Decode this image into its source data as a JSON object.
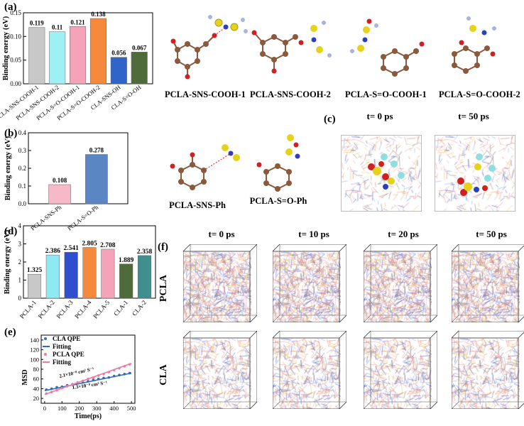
{
  "panel_labels": {
    "a": "(a)",
    "b": "(b)",
    "c": "(c)",
    "d": "(d)",
    "e": "(e)",
    "f": "(f)"
  },
  "molecule_labels": {
    "a": [
      "PCLA-SNS-COOH-1",
      "PCLA-SNS-COOH-2",
      "PCLA-S=O-COOH-1",
      "PCLA-S=O-COOH-2"
    ],
    "b": [
      "PCLA-SNS-Ph",
      "PCLA-S=O-Ph"
    ]
  },
  "panel_c": {
    "times": [
      "t= 0 ps",
      "t= 50 ps"
    ]
  },
  "panel_f": {
    "times": [
      "t= 0 ps",
      "t= 10 ps",
      "t= 20 ps",
      "t= 50 ps"
    ],
    "rows": [
      "PCLA",
      "CLA"
    ]
  },
  "chart_data": [
    {
      "id": "a",
      "type": "bar",
      "title": "",
      "xlabel": "",
      "ylabel": "Binding energy (eV)",
      "ylim": [
        0,
        0.15
      ],
      "yticks": [
        0.0,
        0.05,
        0.1,
        0.15
      ],
      "categories": [
        "PCLA-SNS-COOH-1",
        "PCLA-SNS-COOH-2",
        "PCLA-S=O-COOH-1",
        "PCLA-S=O-COOH-2",
        "CLA-SNS-OH",
        "CLA-S=O-OH"
      ],
      "values": [
        0.119,
        0.11,
        0.121,
        0.138,
        0.056,
        0.067
      ],
      "labels": [
        "0.119",
        "0.11",
        "0.121",
        "0.138",
        "0.056",
        "0.067"
      ],
      "colors": [
        "#c8c8c8",
        "#9ef0f4",
        "#f5a3b8",
        "#f58a3c",
        "#2f65c8",
        "#4f6b3a"
      ]
    },
    {
      "id": "b",
      "type": "bar",
      "title": "",
      "xlabel": "",
      "ylabel": "Binding energy (eV)",
      "ylim": [
        0,
        0.4
      ],
      "yticks": [
        0.0,
        0.1,
        0.2,
        0.3,
        0.4
      ],
      "categories": [
        "PCLA-SNS-Ph",
        "PCLA-S=O-Ph"
      ],
      "values": [
        0.108,
        0.278
      ],
      "labels": [
        "0.108",
        "0.278"
      ],
      "colors": [
        "#f7b8c8",
        "#5b86c4"
      ]
    },
    {
      "id": "d",
      "type": "bar",
      "title": "",
      "xlabel": "",
      "ylabel": "Binding energy (eV)",
      "ylim": [
        0,
        4
      ],
      "yticks": [
        0,
        1,
        2,
        3,
        4
      ],
      "categories": [
        "PCLA-1",
        "PCLA-2",
        "PCLA-3",
        "PCLA-4",
        "PCLA-5",
        "CLA-1",
        "CLA-2"
      ],
      "values": [
        1.325,
        2.386,
        2.541,
        2.805,
        2.708,
        1.889,
        2.358
      ],
      "labels": [
        "1.325",
        "2.386",
        "2.541",
        "2.805",
        "2.708",
        "1.889",
        "2.358"
      ],
      "colors": [
        "#c8c8c8",
        "#8fe9f2",
        "#2f4fd0",
        "#f58a3c",
        "#f5a3b8",
        "#4f6b3a",
        "#3f8f8f"
      ]
    },
    {
      "id": "e",
      "type": "scatter",
      "title": "",
      "xlabel": "Time(ps)",
      "ylabel": "MSD",
      "xlim": [
        -20,
        520
      ],
      "ylim": [
        10,
        150
      ],
      "xticks": [
        0,
        100,
        200,
        300,
        400,
        500
      ],
      "yticks": [
        20,
        30,
        40,
        50,
        60,
        70,
        80,
        90,
        100,
        110,
        120,
        130,
        140
      ],
      "legend": [
        "CLA QPE",
        "Fitting",
        "PCLA QPE",
        "Fitting"
      ],
      "annotations": [
        "2.1×10⁻⁸ cm² S⁻¹",
        "1.3×10⁻⁸ cm² S⁻¹"
      ],
      "series": [
        {
          "name": "CLA QPE",
          "kind": "scatter",
          "color": "#3a6fb0",
          "x": [
            10,
            40,
            70,
            100,
            130,
            160,
            190,
            220,
            250,
            280,
            310,
            340,
            370,
            400,
            430,
            460,
            490
          ],
          "y": [
            38,
            40,
            43,
            44,
            47,
            49,
            51,
            53,
            55,
            58,
            60,
            62,
            63,
            66,
            68,
            70,
            72
          ]
        },
        {
          "name": "Fitting",
          "kind": "line",
          "color": "#2e6bbf",
          "x": [
            0,
            500
          ],
          "y": [
            36,
            72
          ]
        },
        {
          "name": "PCLA QPE",
          "kind": "scatter",
          "color": "#f07aa0",
          "x": [
            10,
            40,
            70,
            100,
            130,
            160,
            190,
            220,
            250,
            280,
            310,
            340,
            370,
            400,
            430,
            460,
            490
          ],
          "y": [
            30,
            33,
            37,
            41,
            45,
            48,
            53,
            56,
            60,
            63,
            67,
            70,
            74,
            78,
            82,
            86,
            90
          ]
        },
        {
          "name": "Fitting",
          "kind": "line",
          "color": "#f07aa0",
          "x": [
            0,
            500
          ],
          "y": [
            28,
            92
          ]
        }
      ]
    }
  ]
}
